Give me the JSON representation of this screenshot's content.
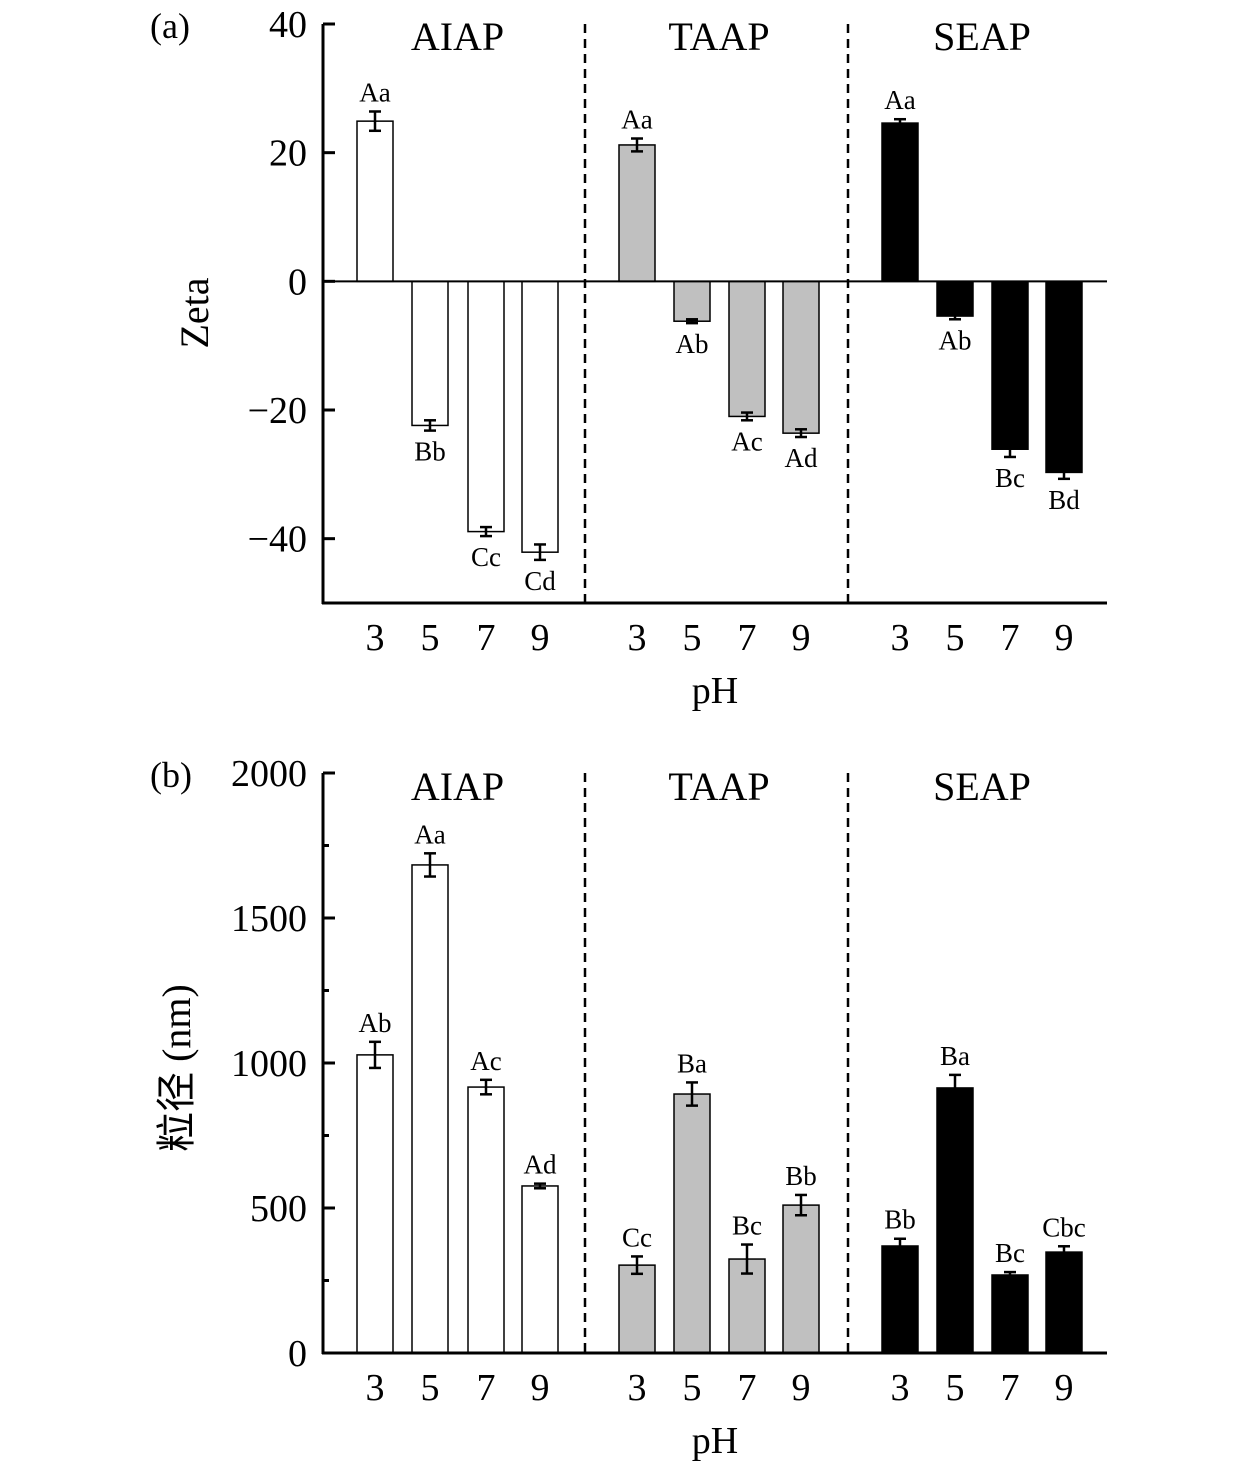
{
  "colors": {
    "AIAP": "#ffffff",
    "TAAP": "#c0c0c0",
    "SEAP": "#000000",
    "axis": "#000000"
  },
  "chart_data": [
    {
      "type": "bar",
      "panel_label": "(a)",
      "ylabel": "Zeta",
      "xlabel": "pH",
      "ylim": [
        -50,
        40
      ],
      "yticks": [
        40,
        20,
        0,
        -20,
        -40
      ],
      "ytick_labels": [
        "40",
        "20",
        "0",
        "−20",
        "−40"
      ],
      "categories": [
        "3",
        "5",
        "7",
        "9"
      ],
      "groups": [
        {
          "name": "AIAP",
          "values": [
            24.9,
            -22.4,
            -38.9,
            -42.1
          ],
          "errors": [
            1.5,
            0.8,
            0.7,
            1.2
          ],
          "letters": [
            "Aa",
            "Bb",
            "Cc",
            "Cd"
          ]
        },
        {
          "name": "TAAP",
          "values": [
            21.2,
            -6.2,
            -21.0,
            -23.6
          ],
          "errors": [
            1.0,
            0.3,
            0.6,
            0.6
          ],
          "letters": [
            "Aa",
            "Ab",
            "Ac",
            "Ad"
          ]
        },
        {
          "name": "SEAP",
          "values": [
            24.6,
            -5.4,
            -26.1,
            -29.7
          ],
          "errors": [
            0.6,
            0.5,
            1.2,
            1.0
          ],
          "letters": [
            "Aa",
            "Ab",
            "Bc",
            "Bd"
          ]
        }
      ]
    },
    {
      "type": "bar",
      "panel_label": "(b)",
      "ylabel": "粒径 (nm)",
      "xlabel": "pH",
      "ylim": [
        0,
        2000
      ],
      "yticks": [
        2000,
        1500,
        1000,
        500,
        0
      ],
      "ytick_labels": [
        "2000",
        "1500",
        "1000",
        "500",
        "0"
      ],
      "minor_ticks": [
        250,
        750,
        1250,
        1750
      ],
      "categories": [
        "3",
        "5",
        "7",
        "9"
      ],
      "groups": [
        {
          "name": "AIAP",
          "values": [
            1028,
            1683,
            917,
            576
          ],
          "errors": [
            45,
            40,
            25,
            8
          ],
          "letters": [
            "Ab",
            "Aa",
            "Ac",
            "Ad"
          ]
        },
        {
          "name": "TAAP",
          "values": [
            303,
            893,
            324,
            510
          ],
          "errors": [
            30,
            40,
            50,
            35
          ],
          "letters": [
            "Cc",
            "Ba",
            "Bc",
            "Bb"
          ]
        },
        {
          "name": "SEAP",
          "values": [
            369,
            914,
            269,
            348
          ],
          "errors": [
            25,
            45,
            10,
            20
          ],
          "letters": [
            "Bb",
            "Ba",
            "Bc",
            "Cbc"
          ]
        }
      ]
    }
  ]
}
